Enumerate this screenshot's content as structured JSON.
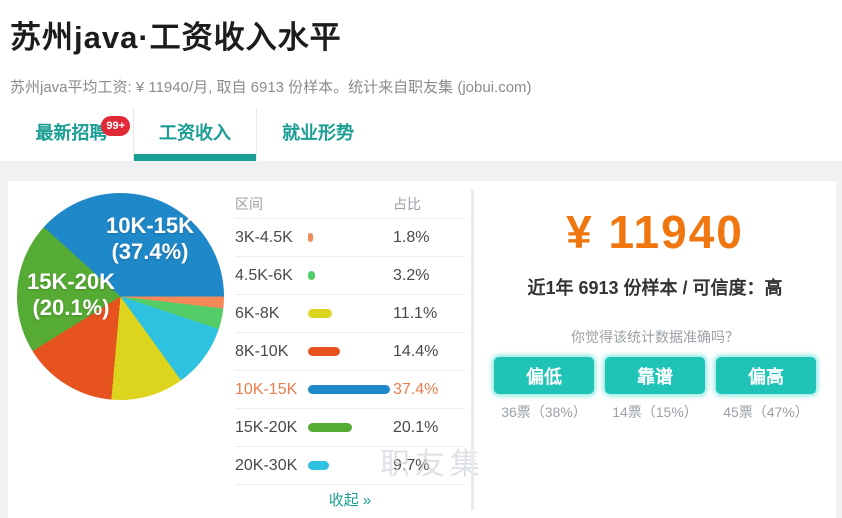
{
  "header": {
    "title": "苏州java·工资收入水平",
    "subtitle": "苏州java平均工资: ¥ 11940/月, 取自 6913 份样本。统计来自职友集 (jobui.com)"
  },
  "tabs": [
    {
      "label": "最新招聘",
      "badge": "99+",
      "active": false
    },
    {
      "label": "工资收入",
      "active": true
    },
    {
      "label": "就业形势",
      "active": false
    }
  ],
  "salary_table": {
    "col_range": "区间",
    "col_share": "占比",
    "collapse_label": "收起 »"
  },
  "chart_data": {
    "type": "pie",
    "categories": [
      "3K-4.5K",
      "4.5K-6K",
      "6K-8K",
      "8K-10K",
      "10K-15K",
      "15K-20K",
      "20K-30K"
    ],
    "values": [
      1.8,
      3.2,
      11.1,
      14.4,
      37.4,
      20.1,
      9.7
    ],
    "unit": "%",
    "colors": [
      "#f58a58",
      "#53cd68",
      "#ddd41e",
      "#e6531e",
      "#1f88c9",
      "#55ab33",
      "#2fc2e0"
    ],
    "highlighted_category": "10K-15K",
    "order_clockwise_from_3oclock": [
      0,
      1,
      6,
      2,
      3,
      5,
      4
    ],
    "legend_position": "table-right",
    "pie_labels": [
      {
        "range": "10K-15K",
        "share": "(37.4%)"
      },
      {
        "range": "15K-20K",
        "share": "(20.1%)"
      }
    ]
  },
  "summary": {
    "amount": "¥ 11940",
    "sample_line": "近1年 6913 份样本 / 可信度：高"
  },
  "poll": {
    "question": "你觉得该统计数据准确吗？",
    "options": [
      {
        "label": "偏低",
        "votes": "36票（38%）"
      },
      {
        "label": "靠谱",
        "votes": "14票（15%）"
      },
      {
        "label": "偏高",
        "votes": "45票（47%）"
      }
    ]
  },
  "watermark": "职友集",
  "colors": {
    "accent_teal": "#1b9e94",
    "tab_underline": "#1a9f95",
    "button_teal": "#1fc4b6",
    "amount_orange": "#f0770f",
    "badge_red": "#e12a38",
    "highlight_row": "#e87d4d",
    "page_background": "#f0f1f3"
  }
}
